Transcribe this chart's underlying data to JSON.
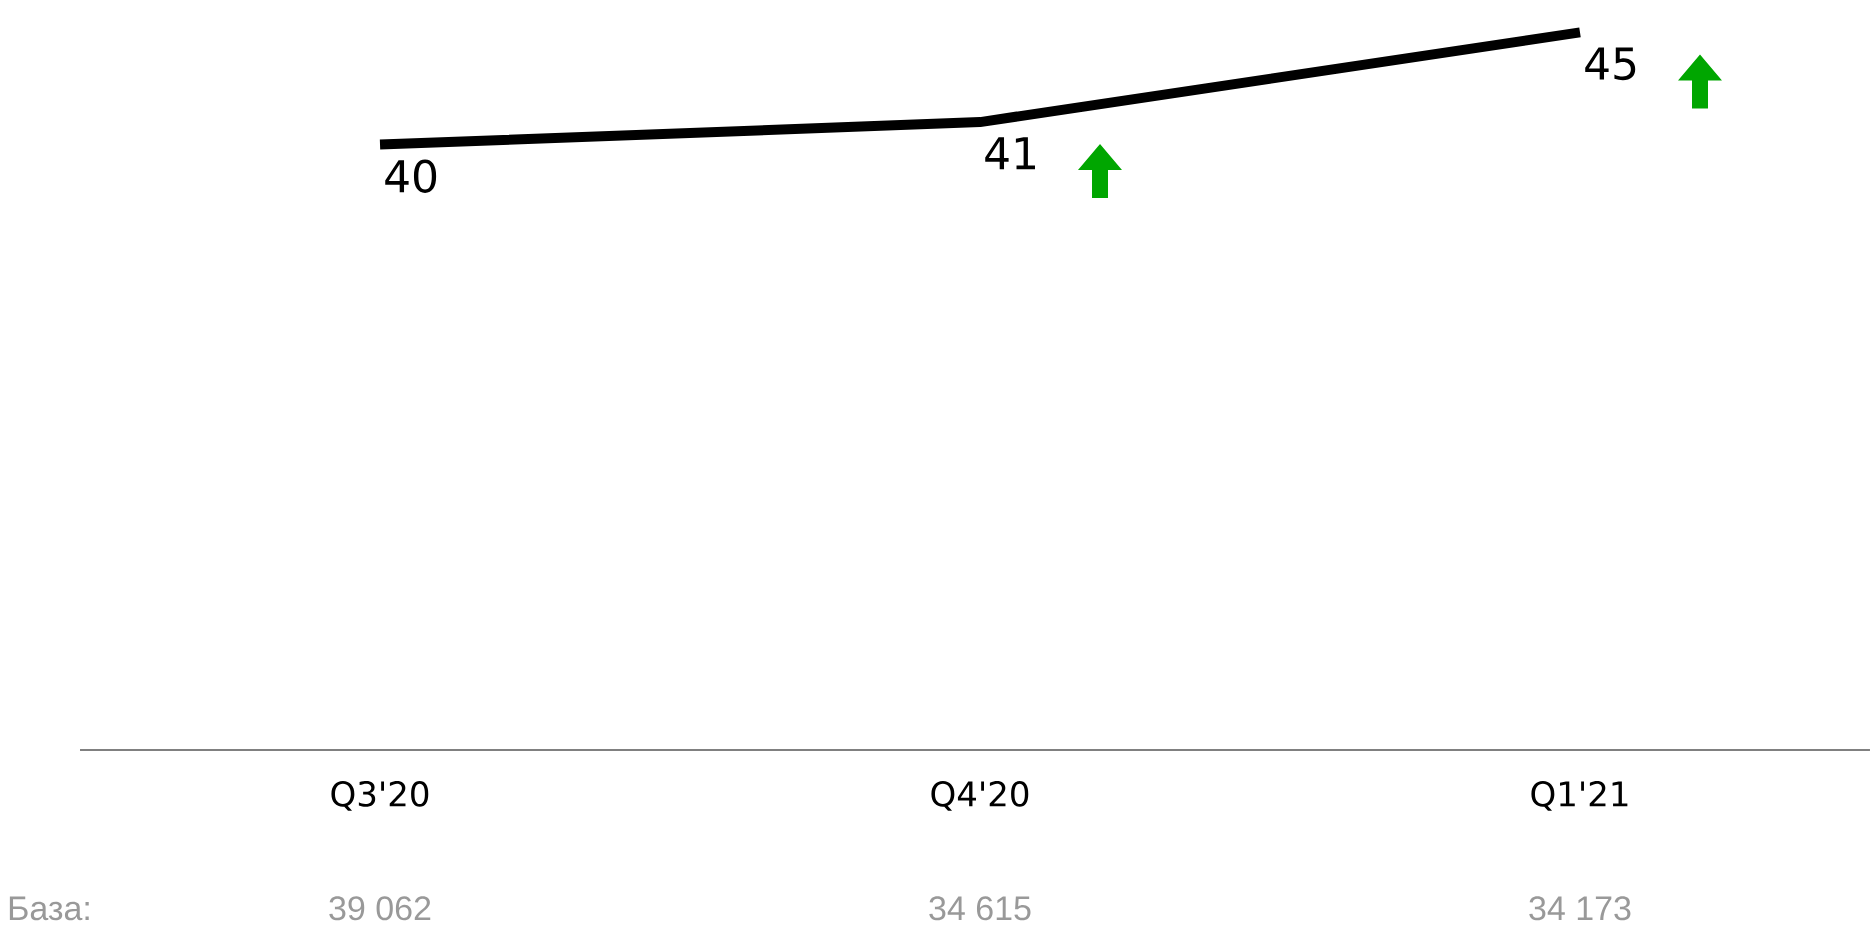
{
  "chart_data": {
    "type": "line",
    "categories": [
      "Q3'20",
      "Q4'20",
      "Q1'21"
    ],
    "series": [
      {
        "color": "#000000",
        "values": [
          40,
          41,
          45
        ]
      }
    ],
    "data_labels": true,
    "tick_labels": "x",
    "marker": "none",
    "line_style": "solid",
    "annotations": [
      "База:",
      "39 062",
      "34 615",
      "34 173"
    ]
  }
}
